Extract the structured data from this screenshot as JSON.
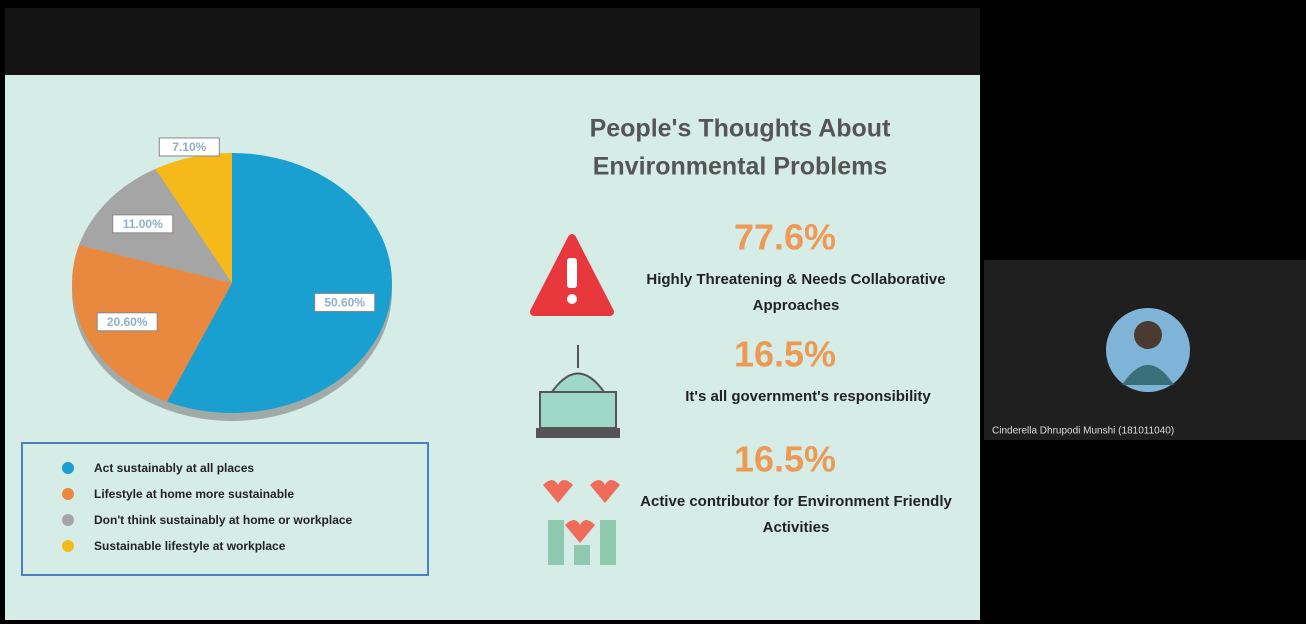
{
  "chart_data": {
    "type": "pie",
    "categories": [
      "Act sustainably at all places",
      "Lifestyle at home more sustainable",
      "Don't think sustainably at home or workplace",
      "Sustainable lifestyle at workplace"
    ],
    "values": [
      50.6,
      20.6,
      11,
      7.1
    ],
    "value_labels": [
      "50.60%",
      "20.60%",
      "11.00%",
      "7.10%"
    ],
    "colors": [
      "#1aa0d0",
      "#e8893f",
      "#a5a5a5",
      "#f5b91a"
    ]
  },
  "slide": {
    "title": [
      "People's Thoughts About",
      "Environmental Problems"
    ],
    "stats": [
      {
        "value": "77.6%",
        "label": [
          "Highly Threatening & Needs Collaborative",
          "Approaches"
        ]
      },
      {
        "value": "16.5%",
        "label": [
          "It's all government's responsibility"
        ]
      },
      {
        "value": "16.5%",
        "label": [
          "Active contributor for Environment Friendly",
          "Activities"
        ]
      }
    ]
  },
  "participant": {
    "name": "Cinderella Dhrupodi Munshi (181011040)"
  }
}
